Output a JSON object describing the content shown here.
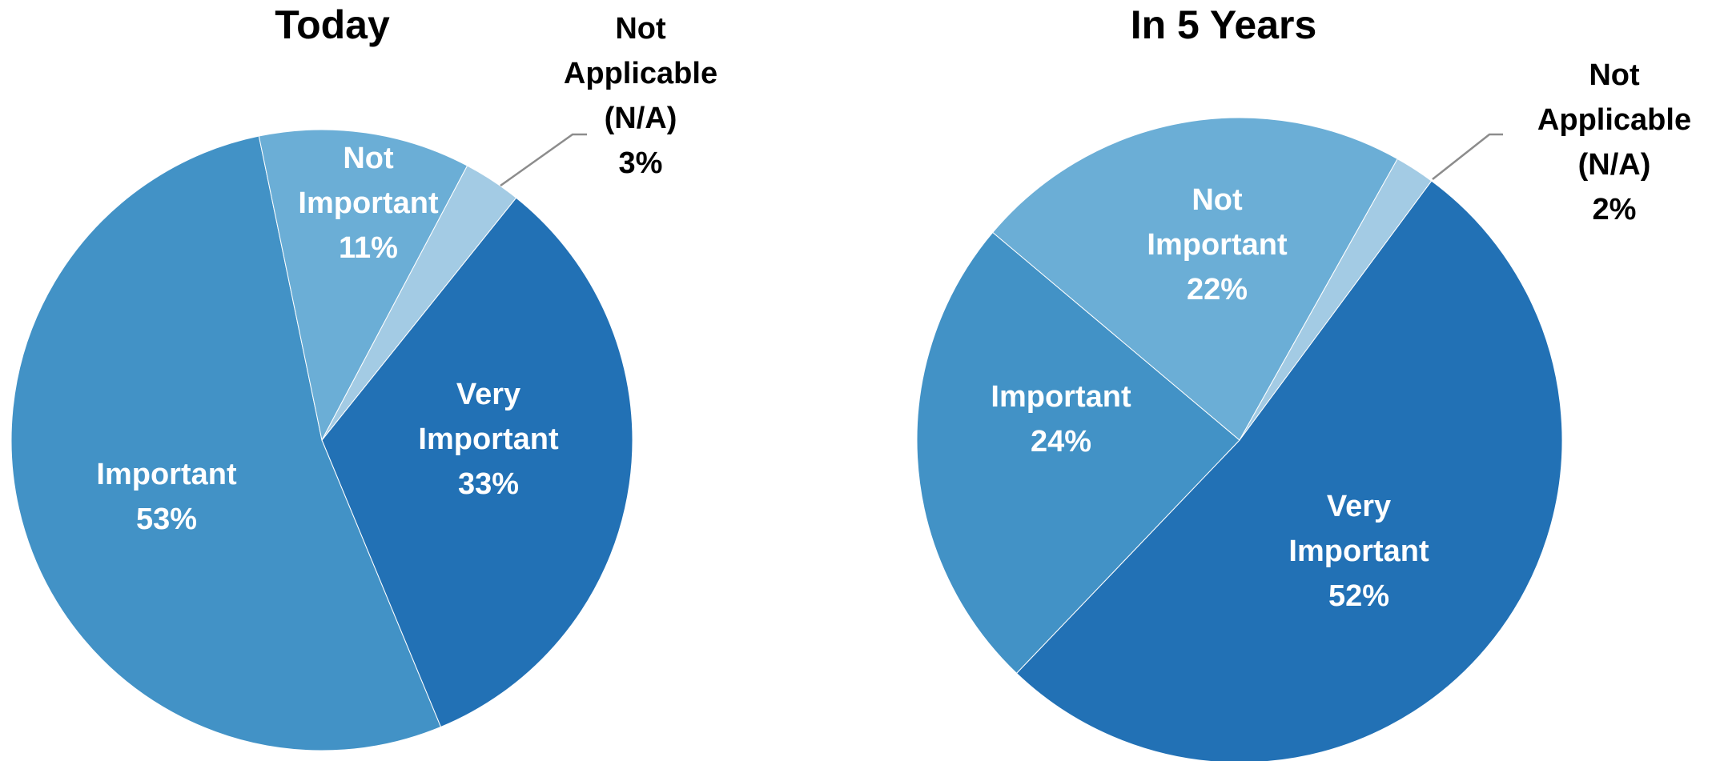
{
  "chart_data": [
    {
      "type": "pie",
      "title": "Today",
      "slices": [
        {
          "label": "Very Important",
          "label_lines": [
            "Very",
            "Important"
          ],
          "value": 33,
          "value_label": "33%",
          "color": "#2271b5"
        },
        {
          "label": "Important",
          "label_lines": [
            "Important"
          ],
          "value": 53,
          "value_label": "53%",
          "color": "#4292c6"
        },
        {
          "label": "Not Important",
          "label_lines": [
            "Not",
            "Important"
          ],
          "value": 11,
          "value_label": "11%",
          "color": "#6baed6"
        },
        {
          "label": "Not Applicable (N/A)",
          "label_lines": [
            "Not",
            "Applicable",
            "(N/A)"
          ],
          "value": 3,
          "value_label": "3%",
          "color": "#a3cbe4",
          "callout": true
        }
      ]
    },
    {
      "type": "pie",
      "title": "In 5 Years",
      "slices": [
        {
          "label": "Very Important",
          "label_lines": [
            "Very",
            "Important"
          ],
          "value": 52,
          "value_label": "52%",
          "color": "#2271b5"
        },
        {
          "label": "Important",
          "label_lines": [
            "Important"
          ],
          "value": 24,
          "value_label": "24%",
          "color": "#4292c6"
        },
        {
          "label": "Not Important",
          "label_lines": [
            "Not",
            "Important"
          ],
          "value": 22,
          "value_label": "22%",
          "color": "#6baed6"
        },
        {
          "label": "Not Applicable (N/A)",
          "label_lines": [
            "Not",
            "Applicable",
            "(N/A)"
          ],
          "value": 2,
          "value_label": "2%",
          "color": "#a3cbe4",
          "callout": true
        }
      ]
    }
  ]
}
